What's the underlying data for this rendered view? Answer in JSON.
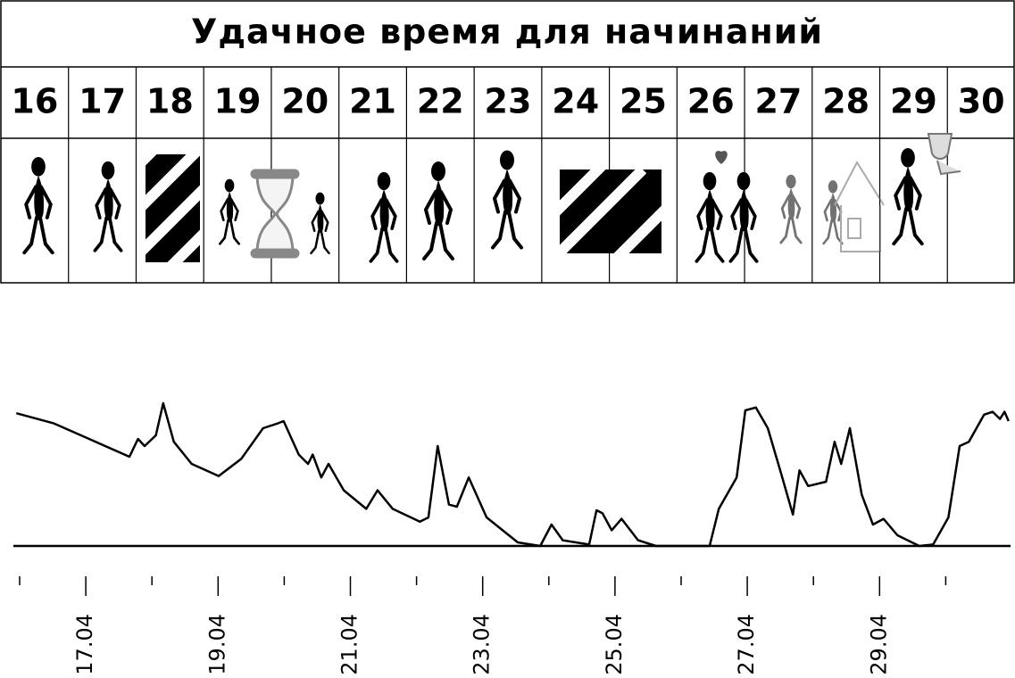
{
  "title": "Удачное время для начинаний",
  "days": [
    16,
    17,
    18,
    19,
    20,
    21,
    22,
    23,
    24,
    25,
    26,
    27,
    28,
    29,
    30
  ],
  "chart_data": {
    "type": "line",
    "color": "#000000",
    "x": [
      15.95,
      16.51,
      17.05,
      17.66,
      17.79,
      17.89,
      18.06,
      18.17,
      18.33,
      18.6,
      19.01,
      19.35,
      19.68,
      19.91,
      19.99,
      20.22,
      20.36,
      20.43,
      20.56,
      20.67,
      20.9,
      21.24,
      21.41,
      21.64,
      22.05,
      22.18,
      22.32,
      22.49,
      22.61,
      22.79,
      23.06,
      23.53,
      23.87,
      24.04,
      24.21,
      24.61,
      24.72,
      24.81,
      24.95,
      25.1,
      25.35,
      25.62,
      26.43,
      26.57,
      26.84,
      26.97,
      27.13,
      27.31,
      27.51,
      27.69,
      27.79,
      27.92,
      28.19,
      28.32,
      28.42,
      28.55,
      28.73,
      28.9,
      29.06,
      29.27,
      29.6,
      29.81,
      30.04,
      30.21,
      30.35,
      30.58,
      30.71,
      30.82,
      30.89,
      30.95
    ],
    "values": [
      93,
      86,
      75,
      62.5,
      75,
      70,
      77.5,
      100,
      73,
      57.5,
      49,
      61,
      82.5,
      86,
      87.5,
      64,
      57.5,
      64,
      48,
      57.5,
      39,
      26,
      39,
      26,
      17,
      20,
      70,
      29,
      27.5,
      48,
      20,
      2.5,
      0,
      15,
      4,
      1,
      25,
      23,
      11,
      19,
      4,
      0,
      0,
      26,
      48,
      95,
      97,
      82.5,
      51,
      22,
      53,
      42,
      45,
      73,
      57.5,
      82.5,
      36,
      15,
      19,
      7.5,
      0,
      1,
      20,
      70,
      73,
      92,
      94,
      89,
      94,
      87.5
    ],
    "xlim": [
      15.9,
      31
    ],
    "ylim": [
      0,
      100
    ],
    "xticks": [
      {
        "value": 17,
        "label": "17.04"
      },
      {
        "value": 19,
        "label": "19.04"
      },
      {
        "value": 21,
        "label": "21.04"
      },
      {
        "value": 23,
        "label": "23.04"
      },
      {
        "value": 25,
        "label": "25.04"
      },
      {
        "value": 27,
        "label": "27.04"
      },
      {
        "value": 29,
        "label": "29.04"
      }
    ],
    "xminor": [
      16,
      18,
      20,
      22,
      24,
      26,
      28,
      30
    ]
  }
}
